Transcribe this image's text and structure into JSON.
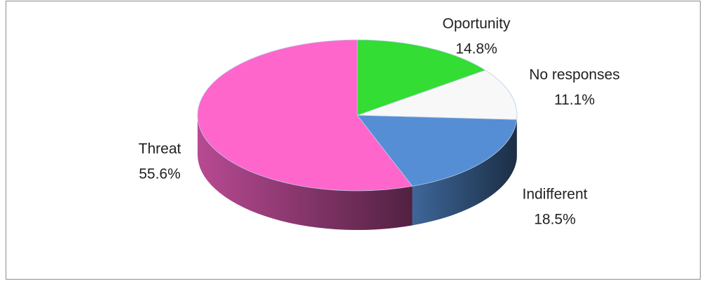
{
  "chart_data": {
    "type": "pie",
    "categories": [
      "Oportunity",
      "No responses",
      "Indifferent",
      "Threat"
    ],
    "values": [
      14.8,
      11.1,
      18.5,
      55.6
    ],
    "value_labels": [
      "14.8%",
      "11.1%",
      "18.5%",
      "55.6%"
    ],
    "colors": [
      "#33dd33",
      "#f8f8f8",
      "#558ed5",
      "#ff66cc"
    ],
    "three_d": true
  }
}
